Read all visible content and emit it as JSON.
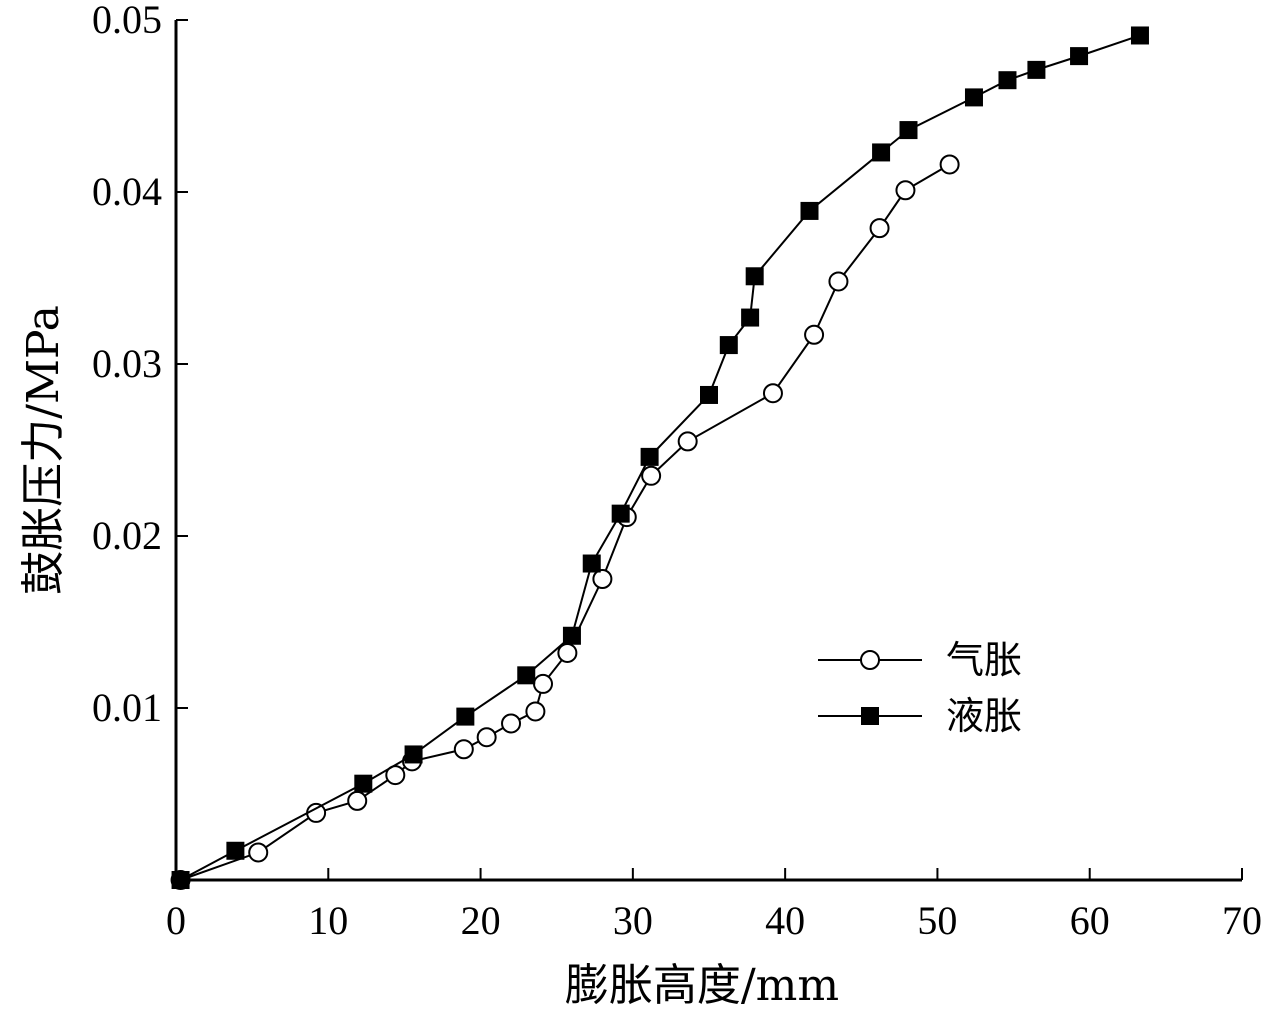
{
  "chart_data": {
    "type": "line",
    "xlabel": "膨胀高度/mm",
    "ylabel": "鼓胀压力/MPa",
    "xlim": [
      0,
      70
    ],
    "ylim": [
      0,
      0.05
    ],
    "x_ticks": [
      "0",
      "10",
      "20",
      "30",
      "40",
      "50",
      "60",
      "70"
    ],
    "y_ticks": [
      "0.01",
      "0.02",
      "0.03",
      "0.04",
      "0.05"
    ],
    "grid": false,
    "legend_position": "lower-right",
    "series": [
      {
        "name": "气胀",
        "marker": "open-circle",
        "color": "#000000",
        "points": [
          [
            0.3,
            0.0
          ],
          [
            5.4,
            0.0016
          ],
          [
            9.2,
            0.0039
          ],
          [
            11.9,
            0.0046
          ],
          [
            14.4,
            0.0061
          ],
          [
            15.5,
            0.0069
          ],
          [
            18.9,
            0.0076
          ],
          [
            20.4,
            0.0083
          ],
          [
            22.0,
            0.0091
          ],
          [
            23.6,
            0.0098
          ],
          [
            24.1,
            0.0114
          ],
          [
            25.7,
            0.0132
          ],
          [
            28.0,
            0.0175
          ],
          [
            29.6,
            0.0211
          ],
          [
            31.2,
            0.0235
          ],
          [
            33.6,
            0.0255
          ],
          [
            39.2,
            0.0283
          ],
          [
            41.9,
            0.0317
          ],
          [
            43.5,
            0.0348
          ],
          [
            46.2,
            0.0379
          ],
          [
            47.9,
            0.0401
          ],
          [
            50.8,
            0.0416
          ]
        ]
      },
      {
        "name": "液胀",
        "marker": "filled-square",
        "color": "#000000",
        "points": [
          [
            0.3,
            0.0
          ],
          [
            3.9,
            0.0017
          ],
          [
            12.3,
            0.0056
          ],
          [
            15.6,
            0.0073
          ],
          [
            19.0,
            0.0095
          ],
          [
            23.0,
            0.0119
          ],
          [
            26.0,
            0.0142
          ],
          [
            27.3,
            0.0184
          ],
          [
            29.2,
            0.0213
          ],
          [
            31.1,
            0.0246
          ],
          [
            35.0,
            0.0282
          ],
          [
            36.3,
            0.0311
          ],
          [
            37.7,
            0.0327
          ],
          [
            38.0,
            0.0351
          ],
          [
            41.6,
            0.0389
          ],
          [
            46.3,
            0.0423
          ],
          [
            48.1,
            0.0436
          ],
          [
            52.4,
            0.0455
          ],
          [
            54.6,
            0.0465
          ],
          [
            56.5,
            0.0471
          ],
          [
            59.3,
            0.0479
          ],
          [
            63.3,
            0.0491
          ]
        ]
      }
    ]
  }
}
